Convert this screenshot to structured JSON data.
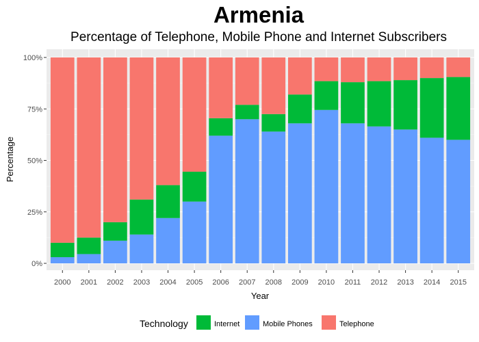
{
  "chart_data": {
    "type": "bar",
    "stacked": true,
    "title": "Armenia",
    "subtitle": "Percentage of Telephone, Mobile Phone and Internet Subscribers",
    "xlabel": "Year",
    "ylabel": "Percentage",
    "ylim": [
      0,
      100
    ],
    "yticks": [
      0,
      25,
      50,
      75,
      100
    ],
    "ytick_labels": [
      "0%",
      "25%",
      "50%",
      "75%",
      "100%"
    ],
    "categories": [
      "2000",
      "2001",
      "2002",
      "2003",
      "2004",
      "2005",
      "2006",
      "2007",
      "2008",
      "2009",
      "2010",
      "2011",
      "2012",
      "2013",
      "2014",
      "2015"
    ],
    "series": [
      {
        "name": "Mobile Phones",
        "color": "#619CFF",
        "values": [
          3,
          4.5,
          11,
          14,
          22,
          30,
          62,
          70,
          64,
          68,
          74.5,
          68,
          66.5,
          65,
          61,
          60
        ]
      },
      {
        "name": "Internet",
        "color": "#00BA38",
        "values": [
          7,
          8,
          9,
          17,
          16,
          14.5,
          8.5,
          7,
          8.5,
          14,
          14,
          20,
          22,
          24,
          29,
          30.5
        ]
      },
      {
        "name": "Telephone",
        "color": "#F8766D",
        "values": [
          90,
          87.5,
          80,
          69,
          62,
          55.5,
          29.5,
          23,
          27.5,
          18,
          11.5,
          12,
          11.5,
          11,
          10,
          9.5
        ]
      }
    ],
    "legend": {
      "title": "Technology",
      "position": "bottom",
      "order": [
        "Internet",
        "Mobile Phones",
        "Telephone"
      ]
    },
    "grid": true,
    "panel_background": "#EBEBEB"
  }
}
